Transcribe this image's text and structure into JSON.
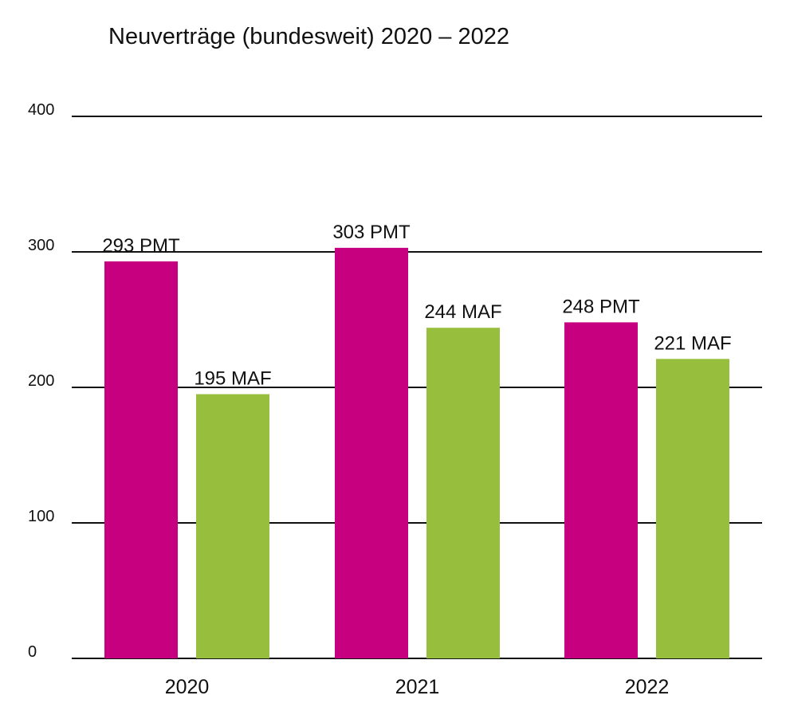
{
  "chart_data": {
    "type": "bar",
    "title": "Neuverträge (bundesweit) 2020 – 2022",
    "categories": [
      "2020",
      "2021",
      "2022"
    ],
    "series": [
      {
        "name": "PMT",
        "color": "#c6007e",
        "values": [
          293,
          303,
          248
        ]
      },
      {
        "name": "MAF",
        "color": "#97bf3d",
        "values": [
          195,
          244,
          221
        ]
      }
    ],
    "data_labels": [
      [
        "293 PMT",
        "303 PMT",
        "248 PMT"
      ],
      [
        "195 MAF",
        "244 MAF",
        "221 MAF"
      ]
    ],
    "ylim": [
      0,
      400
    ],
    "yticks": [
      "0",
      "100",
      "200",
      "300",
      "400"
    ],
    "grid": true,
    "legend": "none",
    "xlabel": "",
    "ylabel": ""
  }
}
